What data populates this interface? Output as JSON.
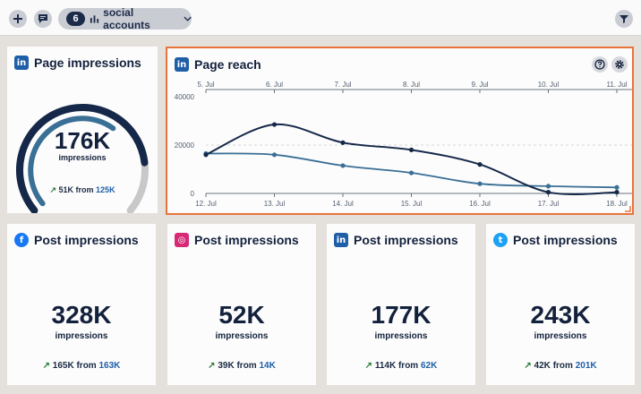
{
  "toolbar": {
    "accounts_count": "6",
    "accounts_label": "social accounts"
  },
  "colors": {
    "primary_navy": "#152849",
    "secondary_blue": "#3a6f96",
    "positive_green": "#2e7d3a",
    "selected_border": "#e8743b"
  },
  "page_impressions": {
    "title": "Page impressions",
    "network": "linkedin-icon",
    "value": "176K",
    "unit": "impressions",
    "delta_icon": "↗",
    "current": "51K",
    "from_word": "from",
    "previous": "125K",
    "gauge_fraction": 0.82
  },
  "page_reach": {
    "title": "Page reach",
    "network": "linkedin-icon"
  },
  "chart_data": {
    "type": "line",
    "title": "Page reach",
    "top_axis_labels": [
      "5. Jul",
      "6. Jul",
      "7. Jul",
      "8. Jul",
      "9. Jul",
      "10. Jul",
      "11. Jul"
    ],
    "bottom_axis_labels": [
      "12. Jul",
      "13. Jul",
      "14. Jul",
      "15. Jul",
      "16. Jul",
      "17. Jul",
      "18. Jul"
    ],
    "y_ticks": [
      "40000",
      "20000",
      "0"
    ],
    "ylim": [
      0,
      40000
    ],
    "grid": true,
    "series": [
      {
        "values": [
          16000,
          28500,
          21000,
          18000,
          12000,
          500,
          500
        ],
        "color": "#152849"
      },
      {
        "values": [
          16500,
          16000,
          11500,
          8500,
          4000,
          3000,
          2500
        ],
        "color": "#3a6f96"
      }
    ]
  },
  "post_cards": [
    {
      "title": "Post impressions",
      "network": "facebook-icon",
      "glyph": "f",
      "value": "328K",
      "unit": "impressions",
      "delta_icon": "↗",
      "current": "165K",
      "from_word": "from",
      "previous": "163K"
    },
    {
      "title": "Post impressions",
      "network": "instagram-icon",
      "glyph": "◎",
      "value": "52K",
      "unit": "impressions",
      "delta_icon": "↗",
      "current": "39K",
      "from_word": "from",
      "previous": "14K"
    },
    {
      "title": "Post impressions",
      "network": "linkedin-icon",
      "glyph": "in",
      "value": "177K",
      "unit": "impressions",
      "delta_icon": "↗",
      "current": "114K",
      "from_word": "from",
      "previous": "62K"
    },
    {
      "title": "Post impressions",
      "network": "twitter-icon",
      "glyph": "t",
      "value": "243K",
      "unit": "impressions",
      "delta_icon": "↗",
      "current": "42K",
      "from_word": "from",
      "previous": "201K"
    }
  ]
}
